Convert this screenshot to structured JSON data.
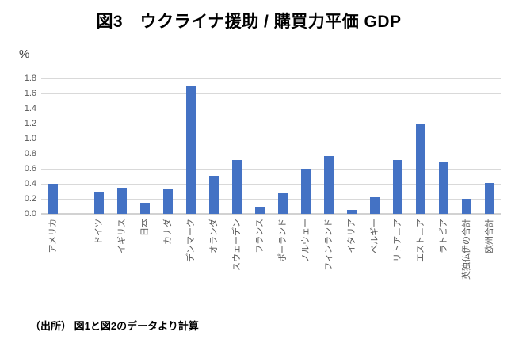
{
  "title": "図3　ウクライナ援助 / 購買力平価 GDP",
  "source_note": "（出所） 図1と図2のデータより計算",
  "chart_data": {
    "type": "bar",
    "title": "図3　ウクライナ援助 / 購買力平価 GDP",
    "ylabel": "%",
    "xlabel": "",
    "categories": [
      "アメリカ",
      "",
      "ドイツ",
      "イギリス",
      "日本",
      "カナダ",
      "デンマーク",
      "オランダ",
      "スウェーデン",
      "フランス",
      "ポーランド",
      "ノルウェー",
      "フィンランド",
      "イタリア",
      "ベルギー",
      "リトアニア",
      "エストニア",
      "ラトビア",
      "英独仏伊の合計",
      "欧州合計"
    ],
    "values": [
      0.4,
      null,
      0.29,
      0.35,
      0.15,
      0.33,
      1.69,
      0.51,
      0.72,
      0.1,
      0.27,
      0.6,
      0.77,
      0.05,
      0.22,
      0.72,
      1.2,
      0.7,
      0.2,
      0.41
    ],
    "ylim": [
      0,
      1.8
    ],
    "ytick_step": 0.2,
    "ytick_labels": [
      "0.0",
      "0.2",
      "0.4",
      "0.6",
      "0.8",
      "1.0",
      "1.2",
      "1.4",
      "1.6",
      "1.8"
    ],
    "grid": true,
    "legend": false,
    "bar_color": "#4472C4",
    "gridline_color": "#d9d9d9",
    "axis_line_color": "#d2d2d2",
    "tick_label_color": "#595959"
  }
}
